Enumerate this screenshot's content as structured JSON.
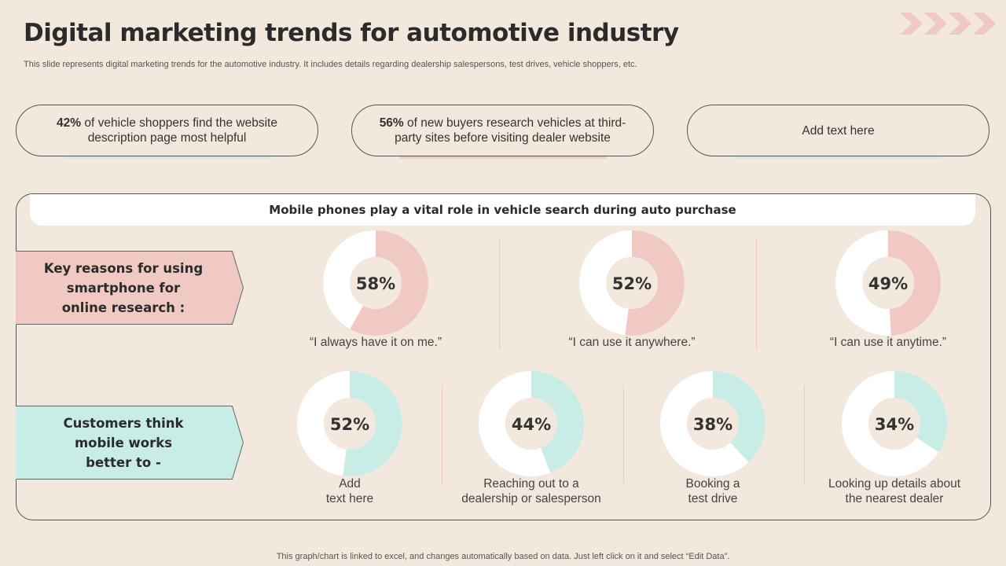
{
  "header": {
    "title": "Digital marketing trends for automotive industry",
    "subtitle": "This slide represents digital marketing trends for the automotive industry. It includes details regarding dealership salespersons, test drives, vehicle shoppers, etc."
  },
  "stats": [
    {
      "highlight": "42%",
      "text": " of vehicle shoppers find the website description page most helpful",
      "underline_color": "#c8ece6"
    },
    {
      "highlight": "56%",
      "text": " of new buyers research vehicles at third-party sites before visiting dealer website",
      "underline_color": "#f0c9c3"
    },
    {
      "highlight": "",
      "text": "Add text here",
      "underline_color": "#c8ece6"
    }
  ],
  "panel": {
    "banner": "Mobile phones play a vital role in vehicle search during auto purchase",
    "row1_tag": "Key reasons for using\nsmartphone  for\nonline research :",
    "row2_tag": "Customers think\nmobile works\nbetter to -"
  },
  "footer": "This graph/chart is linked to excel,  and changes automatically based on data. Just left click on it and select “Edit Data”.",
  "colors": {
    "pink": "#f0c9c3",
    "mint": "#c8ece6",
    "track": "#ffffff",
    "background": "#f2e8de"
  },
  "chart_data": [
    {
      "type": "pie",
      "title": "Key reasons for using smartphone for online research",
      "categories": [
        "“I always have it on me.”",
        "“I can use it anywhere.”",
        "“I can use it anytime.”"
      ],
      "values": [
        58,
        52,
        49
      ],
      "value_labels": [
        "58%",
        "52%",
        "49%"
      ],
      "unit": "%",
      "color": "#f0c9c3"
    },
    {
      "type": "pie",
      "title": "Customers think mobile works better to",
      "categories": [
        "Add\ntext here",
        "Reaching out to a\ndealership or salesperson",
        "Booking a\ntest drive",
        "Looking up details about\nthe nearest dealer"
      ],
      "values": [
        52,
        44,
        38,
        34
      ],
      "value_labels": [
        "52%",
        "44%",
        "38%",
        "34%"
      ],
      "unit": "%",
      "color": "#c8ece6"
    }
  ]
}
